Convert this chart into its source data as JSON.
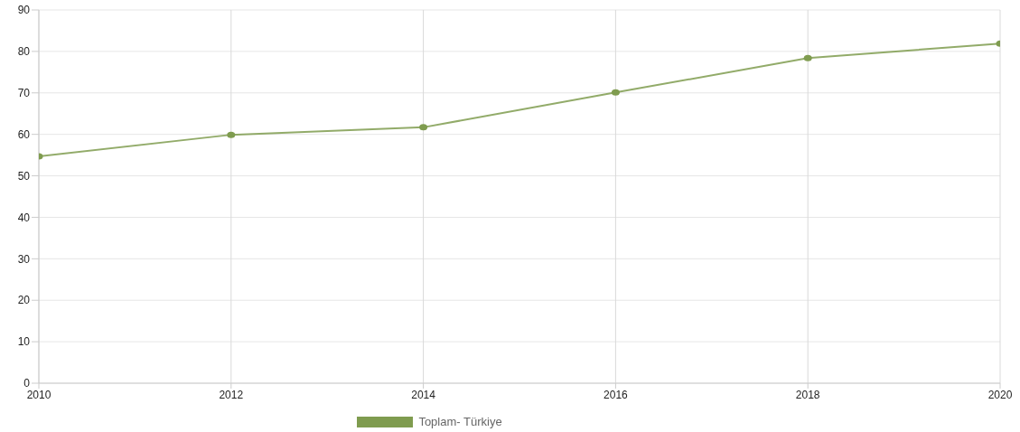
{
  "chart_data": {
    "type": "line",
    "x": [
      2010,
      2012,
      2014,
      2016,
      2018,
      2020
    ],
    "series": [
      {
        "name": "Toplam- Türkiye",
        "color": "#7f9c4f",
        "values": [
          54.7,
          59.9,
          61.7,
          70.1,
          78.4,
          81.9
        ]
      }
    ],
    "xlim": [
      2010,
      2020
    ],
    "xticks": [
      2010,
      2012,
      2014,
      2016,
      2018,
      2020
    ],
    "ylim": [
      0,
      90
    ],
    "yticks": [
      0,
      10,
      20,
      30,
      40,
      50,
      60,
      70,
      80,
      90
    ],
    "grid": true,
    "legend": "bottom",
    "marker": "circle",
    "line_style": "solid"
  }
}
